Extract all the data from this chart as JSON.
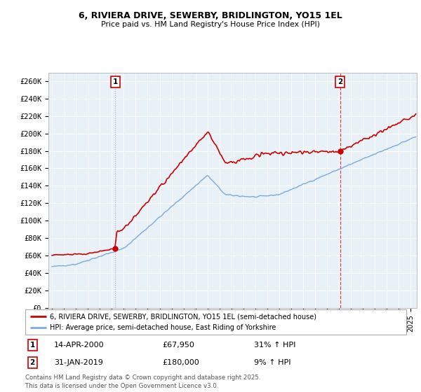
{
  "title": "6, RIVIERA DRIVE, SEWERBY, BRIDLINGTON, YO15 1EL",
  "subtitle": "Price paid vs. HM Land Registry's House Price Index (HPI)",
  "background_color": "#ffffff",
  "chart_bg_color": "#e8f0f8",
  "grid_color": "#ffffff",
  "red_line_color": "#cc0000",
  "blue_line_color": "#7aaadd",
  "annotation1": {
    "label": "1",
    "x_val": 2000.29,
    "price": 67950,
    "text": "14-APR-2000",
    "price_text": "£67,950",
    "pct_text": "31% ↑ HPI"
  },
  "annotation2": {
    "label": "2",
    "x_val": 2019.08,
    "price": 180000,
    "text": "31-JAN-2019",
    "price_text": "£180,000",
    "pct_text": "9% ↑ HPI"
  },
  "legend_line1": "6, RIVIERA DRIVE, SEWERBY, BRIDLINGTON, YO15 1EL (semi-detached house)",
  "legend_line2": "HPI: Average price, semi-detached house, East Riding of Yorkshire",
  "footer": "Contains HM Land Registry data © Crown copyright and database right 2025.\nThis data is licensed under the Open Government Licence v3.0.",
  "ylim": [
    0,
    270000
  ],
  "xlim_start": 1994.7,
  "xlim_end": 2025.5,
  "yticks": [
    0,
    20000,
    40000,
    60000,
    80000,
    100000,
    120000,
    140000,
    160000,
    180000,
    200000,
    220000,
    240000,
    260000
  ],
  "ytick_labels": [
    "£0",
    "£20K",
    "£40K",
    "£60K",
    "£80K",
    "£100K",
    "£120K",
    "£140K",
    "£160K",
    "£180K",
    "£200K",
    "£220K",
    "£240K",
    "£260K"
  ]
}
